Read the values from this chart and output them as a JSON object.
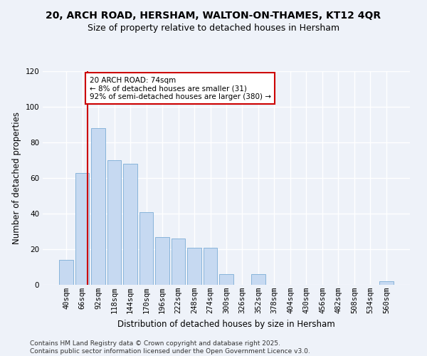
{
  "title": "20, ARCH ROAD, HERSHAM, WALTON-ON-THAMES, KT12 4QR",
  "subtitle": "Size of property relative to detached houses in Hersham",
  "xlabel": "Distribution of detached houses by size in Hersham",
  "ylabel": "Number of detached properties",
  "bar_labels": [
    "40sqm",
    "66sqm",
    "92sqm",
    "118sqm",
    "144sqm",
    "170sqm",
    "196sqm",
    "222sqm",
    "248sqm",
    "274sqm",
    "300sqm",
    "326sqm",
    "352sqm",
    "378sqm",
    "404sqm",
    "430sqm",
    "456sqm",
    "482sqm",
    "508sqm",
    "534sqm",
    "560sqm"
  ],
  "bar_values": [
    14,
    63,
    88,
    70,
    68,
    41,
    27,
    26,
    21,
    21,
    6,
    0,
    6,
    0,
    0,
    0,
    0,
    0,
    0,
    0,
    2
  ],
  "bar_color": "#c6d9f1",
  "bar_edge_color": "#7bacd6",
  "property_line_x": 1.35,
  "annotation_text": "20 ARCH ROAD: 74sqm\n← 8% of detached houses are smaller (31)\n92% of semi-detached houses are larger (380) →",
  "annotation_box_color": "white",
  "annotation_box_edge_color": "#cc0000",
  "vline_color": "#cc0000",
  "ylim": [
    0,
    120
  ],
  "yticks": [
    0,
    20,
    40,
    60,
    80,
    100,
    120
  ],
  "footer_text": "Contains HM Land Registry data © Crown copyright and database right 2025.\nContains public sector information licensed under the Open Government Licence v3.0.",
  "background_color": "#eef2f9",
  "plot_bg_color": "#eef2f9",
  "grid_color": "#ffffff",
  "title_fontsize": 10,
  "subtitle_fontsize": 9,
  "axis_label_fontsize": 8.5,
  "tick_fontsize": 7.5,
  "annotation_fontsize": 7.5,
  "footer_fontsize": 6.5
}
